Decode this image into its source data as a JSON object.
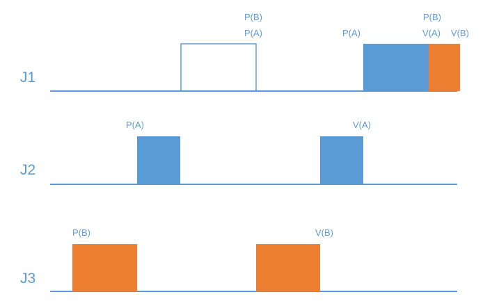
{
  "colors": {
    "line": "#5b9bd5",
    "text": "#5b9bd5",
    "resource_a": "#5b9bd5",
    "resource_b": "#ed7d31",
    "outline": "#5b9bd5"
  },
  "rows": [
    {
      "label": "J1",
      "blocks": [
        {
          "kind": "outline"
        },
        {
          "kind": "resource_a"
        },
        {
          "kind": "resource_b"
        }
      ],
      "annotations": [
        "P(B)",
        "P(A)",
        "P(A)",
        "P(B)",
        "V(A)",
        "V(B)"
      ]
    },
    {
      "label": "J2",
      "blocks": [
        {
          "kind": "resource_a"
        },
        {
          "kind": "resource_a"
        }
      ],
      "annotations": [
        "P(A)",
        "V(A)"
      ]
    },
    {
      "label": "J3",
      "blocks": [
        {
          "kind": "resource_b"
        },
        {
          "kind": "resource_b"
        }
      ],
      "annotations": [
        "P(B)",
        "V(B)"
      ]
    }
  ]
}
